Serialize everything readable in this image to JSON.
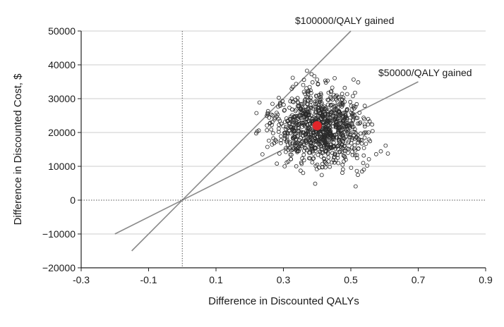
{
  "chart_data": {
    "type": "scatter",
    "title": "",
    "xlabel": "Difference in Discounted QALYs",
    "ylabel": "Difference in Discounted Cost, $",
    "xlim": [
      -0.3,
      0.9
    ],
    "ylim": [
      -20000,
      50000
    ],
    "x_ticks": [
      -0.3,
      -0.1,
      0.1,
      0.3,
      0.5,
      0.7,
      0.9
    ],
    "x_tick_labels": [
      "-0.3",
      "-0.1",
      "0.1",
      "0.3",
      "0.5",
      "0.7",
      "0.9"
    ],
    "y_ticks": [
      -20000,
      -10000,
      0,
      10000,
      20000,
      30000,
      40000,
      50000
    ],
    "y_tick_labels": [
      "−20000",
      "−10000",
      "0",
      "10000",
      "20000",
      "30000",
      "40000",
      "50000"
    ],
    "grid": "horizontal",
    "reference_lines": [
      {
        "label": "$100000/QALY gained",
        "slope": 100000,
        "x_range": [
          -0.15,
          0.5
        ]
      },
      {
        "label": "$50000/QALY gained",
        "slope": 50000,
        "x_range": [
          -0.2,
          0.7
        ]
      }
    ],
    "mean_point": {
      "x": 0.4,
      "y": 22000,
      "color": "#e0262b"
    },
    "simulation_cloud": {
      "approx_points": 1000,
      "x_center": 0.41,
      "x_spread": 0.07,
      "y_center": 21500,
      "y_spread": 5500,
      "x_extent": [
        0.17,
        0.61
      ],
      "y_extent": [
        -1000,
        42000
      ]
    },
    "colors": {
      "line": "#8a8a8a",
      "points": "#2a2a2a",
      "mean": "#e0262b",
      "grid": "#cccccc"
    }
  }
}
